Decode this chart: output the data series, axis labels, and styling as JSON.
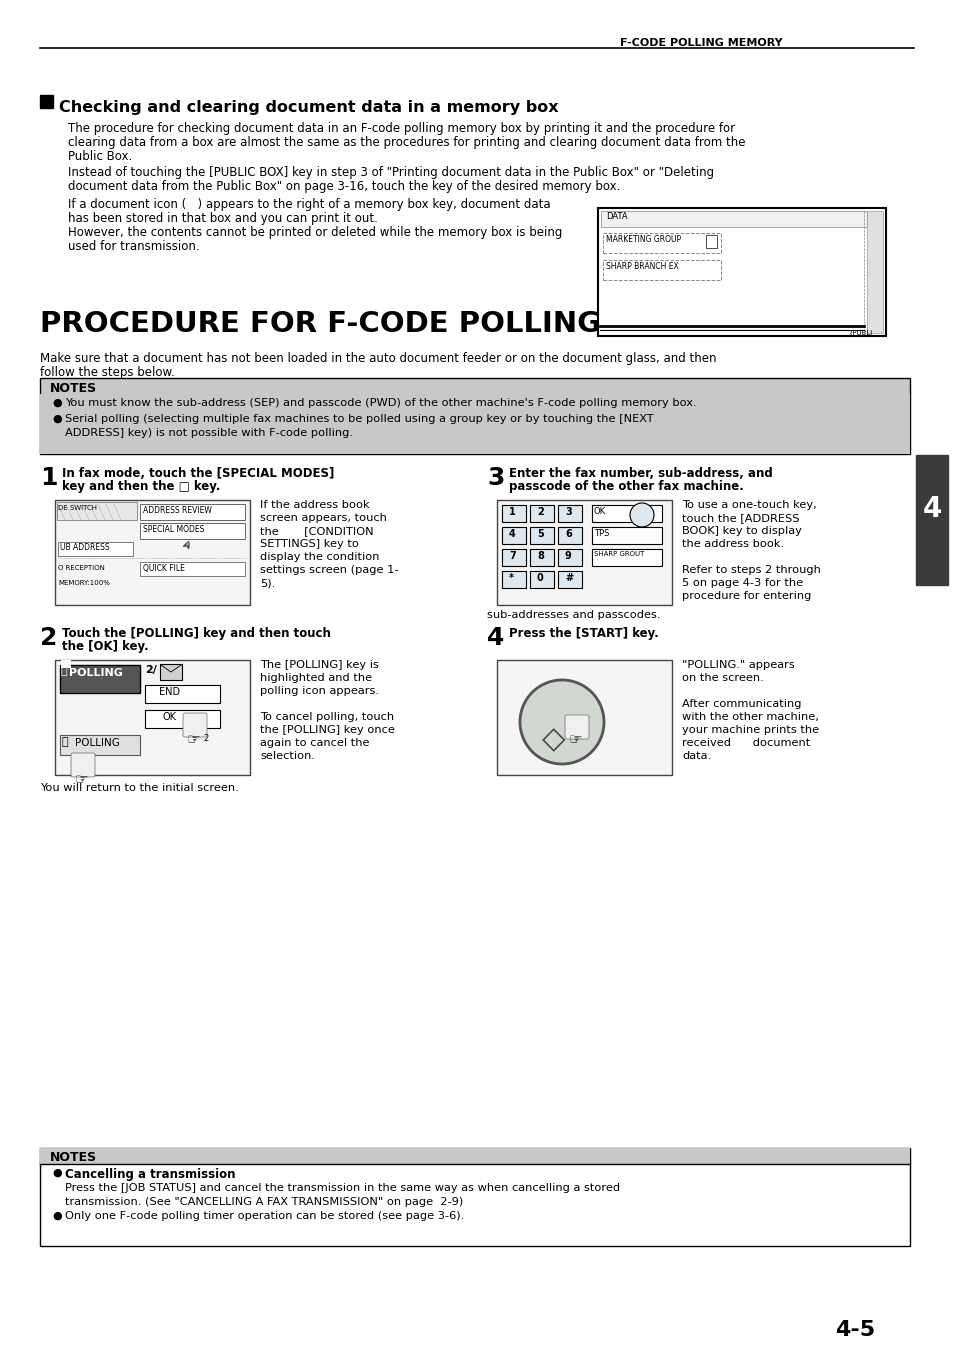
{
  "page_title": "F-CODE POLLING MEMORY",
  "page_number": "4-5",
  "section_marker": "4",
  "background_color": "#ffffff",
  "section1_title": "Checking and clearing document data in a memory box",
  "notes_title": "NOTES",
  "notes_body1": "You must know the sub-address (SEP) and passcode (PWD) of the other machine's F-code polling memory box.",
  "notes_body2a": "Serial polling (selecting multiple fax machines to be polled using a group key or by touching the [NEXT",
  "notes_body2b": "ADDRESS] key) is not possible with F-code polling.",
  "procedure_title": "PROCEDURE FOR F-CODE POLLING",
  "step1_num": "1",
  "step1_title_a": "In fax mode, touch the [SPECIAL MODES]",
  "step1_title_b": "key and then the □ key.",
  "step1_desc_lines": [
    "If the address book",
    "screen appears, touch",
    "the       [CONDITION",
    "SETTINGS] key to",
    "display the condition",
    "settings screen (page 1-",
    "5)."
  ],
  "step2_num": "2",
  "step2_title_a": "Touch the [POLLING] key and then touch",
  "step2_title_b": "the [OK] key.",
  "step2_desc_lines": [
    "The [POLLING] key is",
    "highlighted and the",
    "polling icon appears.",
    "",
    "To cancel polling, touch",
    "the [POLLING] key once",
    "again to cancel the",
    "selection."
  ],
  "step2_footer": "You will return to the initial screen.",
  "step3_num": "3",
  "step3_title_a": "Enter the fax number, sub-address, and",
  "step3_title_b": "passcode of the other fax machine.",
  "step3_desc_lines": [
    "To use a one-touch key,",
    "touch the [ADDRESS",
    "BOOK] key to display",
    "the address book.",
    "",
    "Refer to steps 2 through",
    "5 on page 4-3 for the",
    "procedure for entering"
  ],
  "step3_footer": "sub-addresses and passcodes.",
  "step4_num": "4",
  "step4_title": "Press the [START] key.",
  "step4_desc_lines": [
    "\"POLLING.\" appears",
    "on the screen.",
    "",
    "After communicating",
    "with the other machine,",
    "your machine prints the",
    "received      document",
    "data."
  ],
  "notes2_title": "NOTES",
  "notes2_bold": "Cancelling a transmission",
  "notes2_line1": "Press the [JOB STATUS] and cancel the transmission in the same way as when cancelling a stored",
  "notes2_line2": "transmission. (See \"CANCELLING A FAX TRANSMISSION\" on page  2-9)",
  "notes2_line3": "Only one F-code polling timer operation can be stored (see page 3-6).",
  "body1_line1": "The procedure for checking document data in an F-code polling memory box by printing it and the procedure for",
  "body1_line2": "clearing data from a box are almost the same as the procedures for printing and clearing document data from the",
  "body1_line3": "Public Box.",
  "body2_line1": "Instead of touching the [PUBLIC BOX] key in step 3 of \"Printing document data in the Public Box\" or \"Deleting",
  "body2_line2": "document data from the Public Box\" on page 3-16, touch the key of the desired memory box.",
  "body3_line1": "If a document icon (   ) appears to the right of a memory box key, document data",
  "body3_line2": "has been stored in that box and you can print it out.",
  "body3_line3": "However, the contents cannot be printed or deleted while the memory box is being",
  "body3_line4": "used for transmission.",
  "proc_intro1": "Make sure that a document has not been loaded in the auto document feeder or on the document glass, and then",
  "proc_intro2": "follow the steps below."
}
